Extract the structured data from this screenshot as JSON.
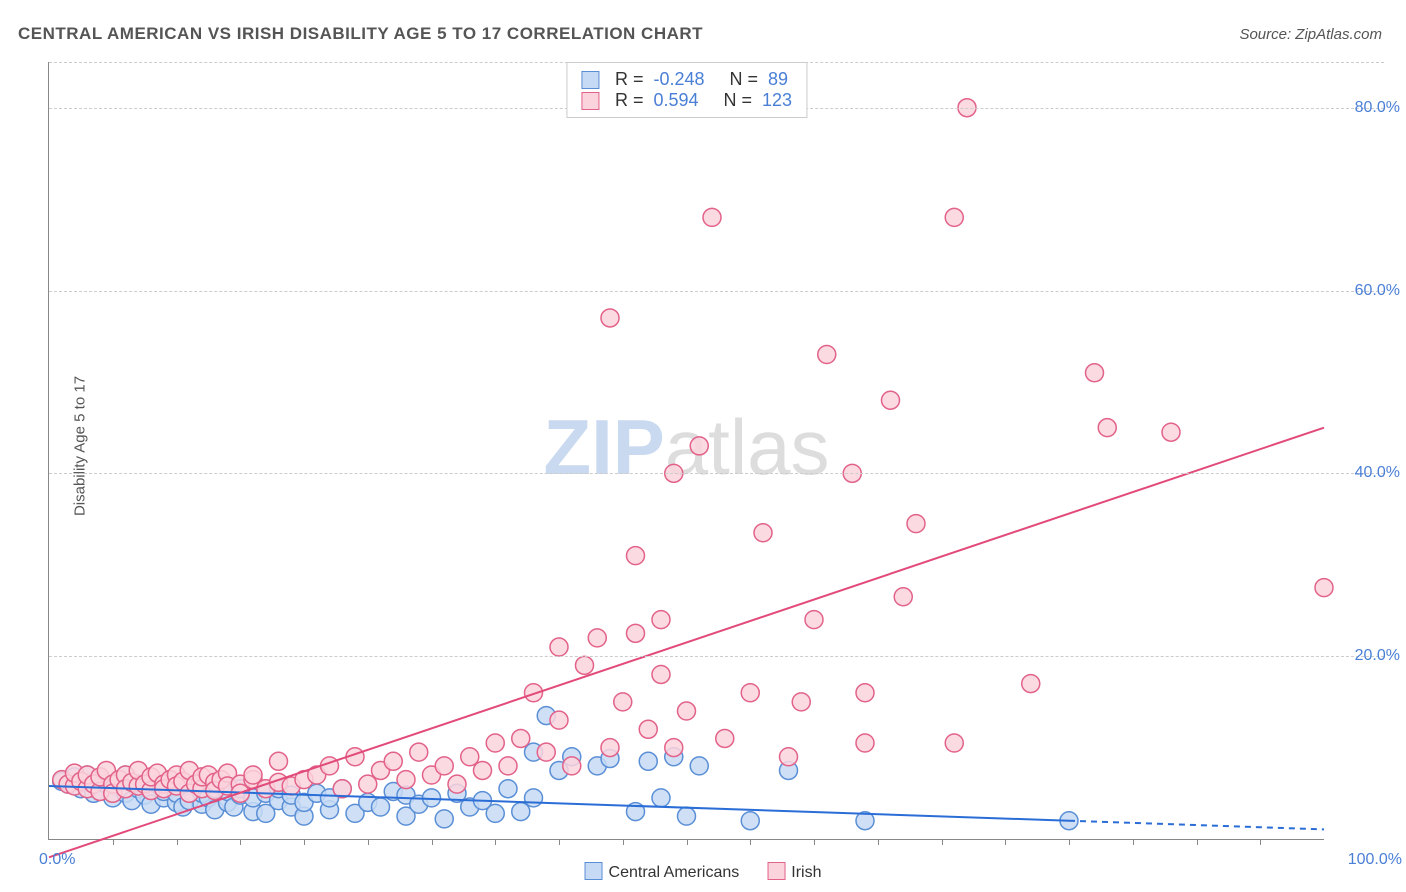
{
  "title": "CENTRAL AMERICAN VS IRISH DISABILITY AGE 5 TO 17 CORRELATION CHART",
  "source": "Source: ZipAtlas.com",
  "ylabel": "Disability Age 5 to 17",
  "watermark": {
    "part1": "ZIP",
    "part2": "atlas"
  },
  "chart": {
    "type": "scatter",
    "xlim": [
      0,
      100
    ],
    "ylim": [
      0,
      85
    ],
    "xtick_labels": {
      "left": "0.0%",
      "right": "100.0%"
    },
    "xtick_minor_step": 5,
    "yticks": [
      20,
      40,
      60,
      80
    ],
    "ytick_labels": [
      "20.0%",
      "40.0%",
      "60.0%",
      "80.0%"
    ],
    "grid_color": "#cccccc",
    "background_color": "#ffffff",
    "marker_radius": 9,
    "marker_stroke_width": 1.5,
    "line_width": 2,
    "series": [
      {
        "name": "Central Americans",
        "marker_fill": "#c7daf5",
        "marker_stroke": "#5a8fd6",
        "line_color": "#2b6dd6",
        "R": "-0.248",
        "N": "89",
        "trend": {
          "x1": 0,
          "y1": 5.8,
          "x2": 80,
          "y2": 2.0,
          "dash_beyond_x": 80,
          "x_end": 100
        },
        "points": [
          [
            1,
            6.3
          ],
          [
            1.5,
            6.0
          ],
          [
            2,
            6.8
          ],
          [
            2.5,
            5.5
          ],
          [
            3,
            6.2
          ],
          [
            3,
            7.0
          ],
          [
            3.5,
            5.0
          ],
          [
            4,
            6.5
          ],
          [
            4,
            5.2
          ],
          [
            4.5,
            6.0
          ],
          [
            5,
            5.8
          ],
          [
            5,
            4.5
          ],
          [
            5.5,
            6.3
          ],
          [
            6,
            5.0
          ],
          [
            6,
            7.0
          ],
          [
            6.5,
            4.2
          ],
          [
            7,
            5.5
          ],
          [
            7,
            6.0
          ],
          [
            7.5,
            4.8
          ],
          [
            8,
            5.3
          ],
          [
            8,
            3.8
          ],
          [
            8.5,
            6.0
          ],
          [
            9,
            4.5
          ],
          [
            9,
            5.2
          ],
          [
            9.5,
            6.5
          ],
          [
            10,
            4.0
          ],
          [
            10,
            5.0
          ],
          [
            10.5,
            3.5
          ],
          [
            11,
            5.8
          ],
          [
            11,
            4.2
          ],
          [
            11.5,
            6.0
          ],
          [
            12,
            3.8
          ],
          [
            12,
            5.0
          ],
          [
            12.5,
            4.5
          ],
          [
            13,
            5.5
          ],
          [
            13,
            3.2
          ],
          [
            13.5,
            6.0
          ],
          [
            14,
            4.0
          ],
          [
            14,
            5.2
          ],
          [
            14.5,
            3.5
          ],
          [
            15,
            4.8
          ],
          [
            15,
            5.5
          ],
          [
            16,
            3.0
          ],
          [
            16,
            4.5
          ],
          [
            17,
            5.0
          ],
          [
            17,
            2.8
          ],
          [
            18,
            4.2
          ],
          [
            18,
            5.5
          ],
          [
            19,
            3.5
          ],
          [
            19,
            4.8
          ],
          [
            20,
            2.5
          ],
          [
            20,
            4.0
          ],
          [
            21,
            5.0
          ],
          [
            22,
            3.2
          ],
          [
            22,
            4.5
          ],
          [
            23,
            5.5
          ],
          [
            24,
            2.8
          ],
          [
            25,
            4.0
          ],
          [
            26,
            3.5
          ],
          [
            27,
            5.2
          ],
          [
            28,
            2.5
          ],
          [
            28,
            4.8
          ],
          [
            29,
            3.8
          ],
          [
            30,
            4.5
          ],
          [
            31,
            2.2
          ],
          [
            32,
            5.0
          ],
          [
            33,
            3.5
          ],
          [
            34,
            4.2
          ],
          [
            35,
            2.8
          ],
          [
            36,
            5.5
          ],
          [
            37,
            3.0
          ],
          [
            38,
            4.5
          ],
          [
            38,
            9.5
          ],
          [
            39,
            13.5
          ],
          [
            40,
            7.5
          ],
          [
            41,
            9.0
          ],
          [
            43,
            8.0
          ],
          [
            44,
            8.8
          ],
          [
            46,
            3.0
          ],
          [
            47,
            8.5
          ],
          [
            48,
            4.5
          ],
          [
            49,
            9.0
          ],
          [
            50,
            2.5
          ],
          [
            51,
            8.0
          ],
          [
            55,
            2.0
          ],
          [
            58,
            7.5
          ],
          [
            64,
            2.0
          ],
          [
            80,
            2.0
          ]
        ]
      },
      {
        "name": "Irish",
        "marker_fill": "#fbd3dd",
        "marker_stroke": "#e26289",
        "line_color": "#e24a7a",
        "R": "0.594",
        "N": "123",
        "trend": {
          "x1": 0,
          "y1": -2,
          "x2": 100,
          "y2": 45
        },
        "points": [
          [
            1,
            6.5
          ],
          [
            1.5,
            6.0
          ],
          [
            2,
            5.8
          ],
          [
            2,
            7.2
          ],
          [
            2.5,
            6.3
          ],
          [
            3,
            5.5
          ],
          [
            3,
            7.0
          ],
          [
            3.5,
            6.0
          ],
          [
            4,
            5.2
          ],
          [
            4,
            6.8
          ],
          [
            4.5,
            7.5
          ],
          [
            5,
            6.0
          ],
          [
            5,
            5.0
          ],
          [
            5.5,
            6.5
          ],
          [
            6,
            7.0
          ],
          [
            6,
            5.5
          ],
          [
            6.5,
            6.2
          ],
          [
            7,
            5.8
          ],
          [
            7,
            7.5
          ],
          [
            7.5,
            6.0
          ],
          [
            8,
            5.3
          ],
          [
            8,
            6.8
          ],
          [
            8.5,
            7.2
          ],
          [
            9,
            6.0
          ],
          [
            9,
            5.5
          ],
          [
            9.5,
            6.5
          ],
          [
            10,
            7.0
          ],
          [
            10,
            5.8
          ],
          [
            10.5,
            6.3
          ],
          [
            11,
            5.0
          ],
          [
            11,
            7.5
          ],
          [
            11.5,
            6.0
          ],
          [
            12,
            5.5
          ],
          [
            12,
            6.8
          ],
          [
            12.5,
            7.0
          ],
          [
            13,
            6.2
          ],
          [
            13,
            5.3
          ],
          [
            13.5,
            6.5
          ],
          [
            14,
            7.2
          ],
          [
            14,
            5.8
          ],
          [
            15,
            6.0
          ],
          [
            15,
            5.0
          ],
          [
            16,
            6.5
          ],
          [
            16,
            7.0
          ],
          [
            17,
            5.5
          ],
          [
            18,
            6.2
          ],
          [
            18,
            8.5
          ],
          [
            19,
            5.8
          ],
          [
            20,
            6.5
          ],
          [
            21,
            7.0
          ],
          [
            22,
            8.0
          ],
          [
            23,
            5.5
          ],
          [
            24,
            9.0
          ],
          [
            25,
            6.0
          ],
          [
            26,
            7.5
          ],
          [
            27,
            8.5
          ],
          [
            28,
            6.5
          ],
          [
            29,
            9.5
          ],
          [
            30,
            7.0
          ],
          [
            31,
            8.0
          ],
          [
            32,
            6.0
          ],
          [
            33,
            9.0
          ],
          [
            34,
            7.5
          ],
          [
            35,
            10.5
          ],
          [
            36,
            8.0
          ],
          [
            37,
            11.0
          ],
          [
            38,
            16.0
          ],
          [
            39,
            9.5
          ],
          [
            40,
            13.0
          ],
          [
            40,
            21.0
          ],
          [
            41,
            8.0
          ],
          [
            42,
            19.0
          ],
          [
            43,
            22.0
          ],
          [
            44,
            10.0
          ],
          [
            44,
            57.0
          ],
          [
            45,
            15.0
          ],
          [
            46,
            22.5
          ],
          [
            46,
            31.0
          ],
          [
            47,
            12.0
          ],
          [
            48,
            18.0
          ],
          [
            48,
            24.0
          ],
          [
            49,
            10.0
          ],
          [
            49,
            40.0
          ],
          [
            50,
            14.0
          ],
          [
            51,
            43.0
          ],
          [
            52,
            68.0
          ],
          [
            53,
            11.0
          ],
          [
            55,
            16.0
          ],
          [
            56,
            33.5
          ],
          [
            58,
            9.0
          ],
          [
            59,
            15.0
          ],
          [
            60,
            24.0
          ],
          [
            61,
            53.0
          ],
          [
            63,
            40.0
          ],
          [
            64,
            10.5
          ],
          [
            64,
            16.0
          ],
          [
            66,
            48.0
          ],
          [
            67,
            26.5
          ],
          [
            68,
            34.5
          ],
          [
            71,
            10.5
          ],
          [
            71,
            68.0
          ],
          [
            72,
            80.0
          ],
          [
            77,
            17.0
          ],
          [
            82,
            51.0
          ],
          [
            83,
            45.0
          ],
          [
            88,
            44.5
          ],
          [
            100,
            27.5
          ]
        ]
      }
    ]
  },
  "legend_bottom": [
    {
      "label": "Central Americans",
      "fill": "#c7daf5",
      "stroke": "#5a8fd6"
    },
    {
      "label": "Irish",
      "fill": "#fbd3dd",
      "stroke": "#e26289"
    }
  ]
}
